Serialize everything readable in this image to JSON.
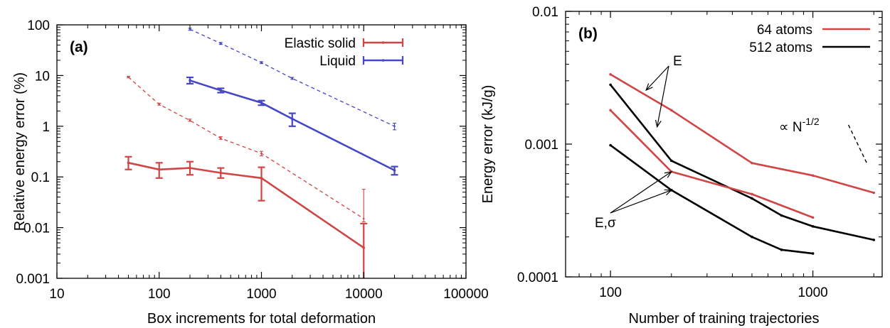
{
  "chart_data": [
    {
      "type": "line",
      "panel_label": "(a)",
      "xlabel": "Box increments for total deformation",
      "ylabel": "Relative energy error (%)",
      "xscale": "log",
      "yscale": "log",
      "xlim": [
        10,
        100000
      ],
      "ylim": [
        0.001,
        100
      ],
      "xticks": [
        10,
        100,
        1000,
        10000,
        100000
      ],
      "xtick_labels": [
        "10",
        "100",
        "1000",
        "10000",
        "100000"
      ],
      "yticks": [
        0.001,
        0.01,
        0.1,
        1,
        10,
        100
      ],
      "ytick_labels": [
        "0.001",
        "0.01",
        "0.1",
        "1",
        "10",
        "100"
      ],
      "legend_position": "top-right",
      "grid": false,
      "series": [
        {
          "name": "Elastic solid",
          "color": "#d04545",
          "style": "solid",
          "x": [
            50,
            100,
            200,
            400,
            1000,
            10000
          ],
          "y": [
            0.19,
            0.14,
            0.15,
            0.12,
            0.095,
            0.004
          ],
          "err_low": [
            0.14,
            0.095,
            0.11,
            0.095,
            0.034,
            0.0008
          ],
          "err_high": [
            0.25,
            0.19,
            0.2,
            0.15,
            0.155,
            0.012
          ]
        },
        {
          "name": "Liquid",
          "color": "#4646c8",
          "style": "solid",
          "x": [
            200,
            400,
            1000,
            2000,
            20000
          ],
          "y": [
            8.0,
            5.1,
            2.9,
            1.4,
            0.135
          ],
          "err_low": [
            6.9,
            4.6,
            2.6,
            1.0,
            0.11
          ],
          "err_high": [
            9.2,
            5.6,
            3.2,
            1.8,
            0.16
          ]
        },
        {
          "color": "#d04545",
          "style": "dashed",
          "x": [
            50,
            100,
            200,
            400,
            1000,
            10000
          ],
          "y": [
            9.3,
            2.7,
            1.3,
            0.58,
            0.29,
            0.015
          ],
          "err_low": [
            9.0,
            2.6,
            1.25,
            0.55,
            0.26,
            0.013
          ],
          "err_high": [
            9.7,
            2.85,
            1.38,
            0.62,
            0.32,
            0.057
          ]
        },
        {
          "color": "#4646c8",
          "style": "dashed",
          "x": [
            200,
            400,
            1000,
            2000,
            20000
          ],
          "y": [
            82,
            43,
            18,
            8.8,
            1.0
          ],
          "err_low": [
            78,
            41,
            17.2,
            8.4,
            0.85
          ],
          "err_high": [
            86,
            45,
            18.8,
            9.2,
            1.15
          ]
        }
      ]
    },
    {
      "type": "line",
      "panel_label": "(b)",
      "xlabel": "Number of training trajectories",
      "ylabel": "Energy error (kJ/g)",
      "xscale": "log",
      "yscale": "log",
      "xlim": [
        60,
        2200
      ],
      "ylim": [
        0.0001,
        0.01
      ],
      "xticks": [
        100,
        1000
      ],
      "xtick_labels": [
        "100",
        "1000"
      ],
      "yticks": [
        0.0001,
        0.001,
        0.01
      ],
      "ytick_labels": [
        "0.0001",
        "0.001",
        "0.01"
      ],
      "legend_position": "top-right",
      "grid": false,
      "series": [
        {
          "name": "64 atoms",
          "color": "#d04545",
          "x": [
            100,
            200,
            500,
            1000,
            2000
          ],
          "y": [
            0.00335,
            0.0018,
            0.00072,
            0.00058,
            0.00043
          ]
        },
        {
          "name": "512 atoms",
          "color": "#000000",
          "x": [
            100,
            200,
            500,
            700,
            1000,
            2000
          ],
          "y": [
            0.0028,
            0.00075,
            0.00039,
            0.00029,
            0.00024,
            0.00019
          ]
        },
        {
          "color": "#d04545",
          "x": [
            100,
            200,
            500,
            1000
          ],
          "y": [
            0.0018,
            0.00062,
            0.00042,
            0.00028
          ]
        },
        {
          "color": "#000000",
          "x": [
            100,
            200,
            500,
            700,
            1000
          ],
          "y": [
            0.00098,
            0.00045,
            0.0002,
            0.00016,
            0.00015
          ]
        }
      ],
      "annotations": [
        {
          "text": "E",
          "points_to": [
            [
              150,
              0.00255
            ],
            [
              170,
              0.00135
            ]
          ]
        },
        {
          "text": "E,σ",
          "points_to": [
            [
              200,
              0.00062
            ],
            [
              200,
              0.00045
            ]
          ]
        },
        {
          "text": "∝ N",
          "superscript": "-1/2",
          "line": {
            "x": [
              1000,
              2000
            ],
            "y": [
              0.00125,
              0.00075
            ],
            "style": "dashed"
          }
        }
      ]
    }
  ]
}
